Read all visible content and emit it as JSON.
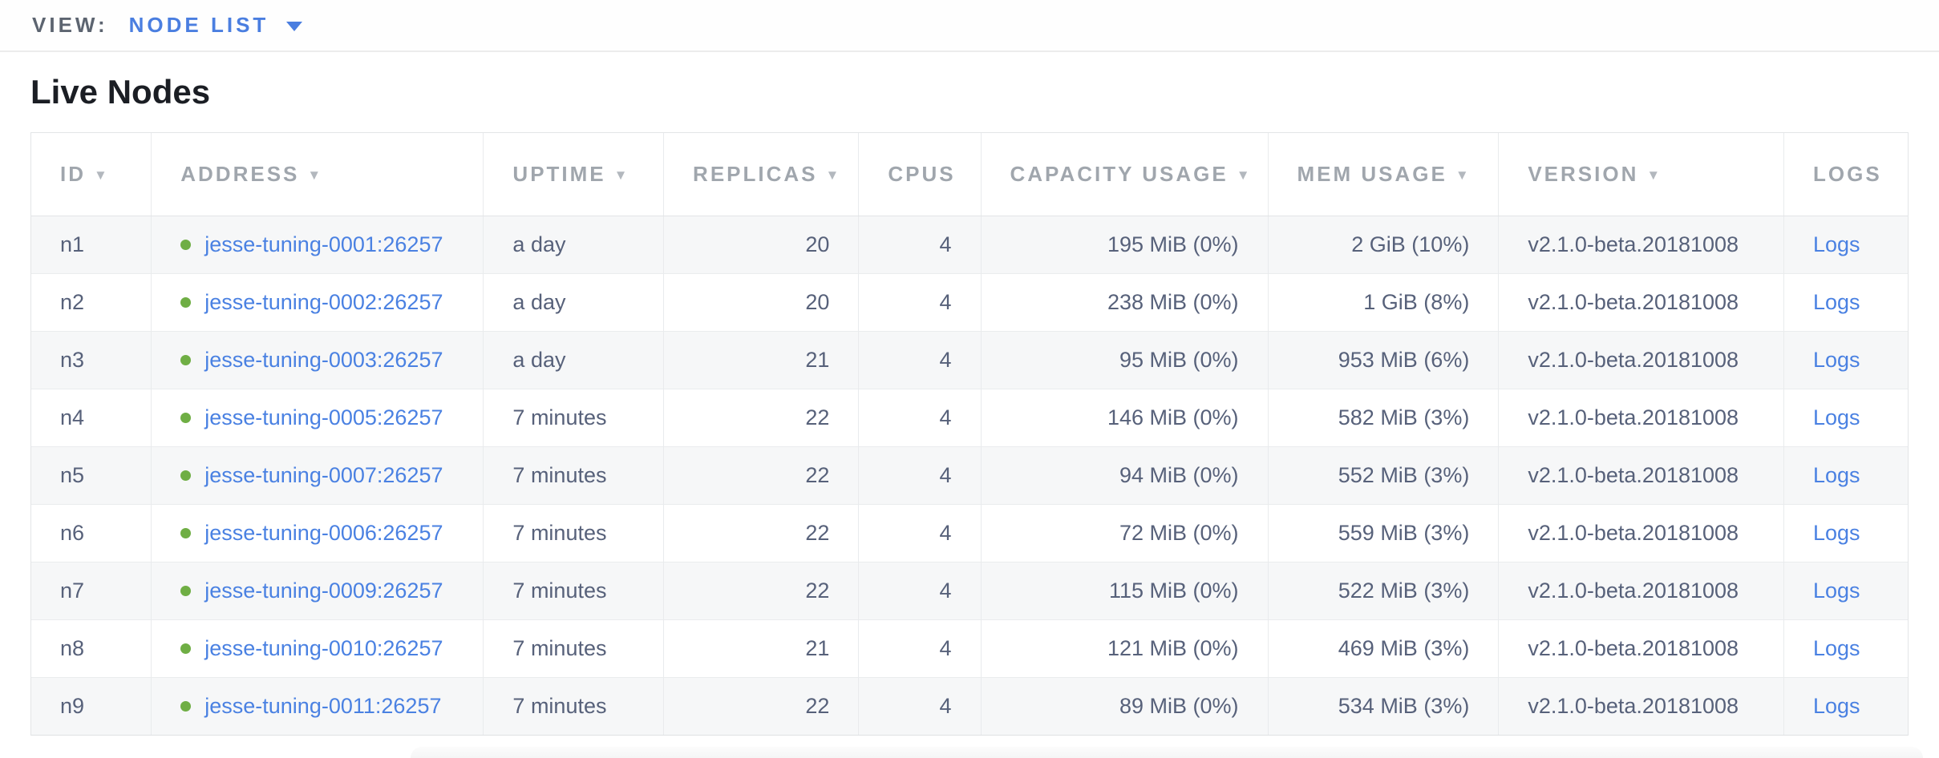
{
  "view_bar": {
    "label": "VIEW:",
    "selected": "NODE LIST"
  },
  "page": {
    "title": "Live Nodes"
  },
  "colors": {
    "accent_blue": "#4a81e2",
    "status_green": "#6fae44",
    "header_gray": "#a0a6ad",
    "body_text": "#57617a",
    "stripe": "#f6f7f8"
  },
  "table": {
    "columns": [
      {
        "key": "id",
        "label": "ID",
        "sortable": true
      },
      {
        "key": "address",
        "label": "ADDRESS",
        "sortable": true
      },
      {
        "key": "uptime",
        "label": "UPTIME",
        "sortable": true
      },
      {
        "key": "replicas",
        "label": "REPLICAS",
        "sortable": true
      },
      {
        "key": "cpus",
        "label": "CPUS",
        "sortable": false
      },
      {
        "key": "capacity",
        "label": "CAPACITY USAGE",
        "sortable": true
      },
      {
        "key": "mem",
        "label": "MEM USAGE",
        "sortable": true
      },
      {
        "key": "version",
        "label": "VERSION",
        "sortable": true
      },
      {
        "key": "logs",
        "label": "LOGS",
        "sortable": false
      }
    ],
    "rows": [
      {
        "id": "n1",
        "address": "jesse-tuning-0001:26257",
        "uptime": "a day",
        "replicas": "20",
        "cpus": "4",
        "capacity": "195 MiB (0%)",
        "mem": "2 GiB (10%)",
        "version": "v2.1.0-beta.20181008",
        "logs": "Logs"
      },
      {
        "id": "n2",
        "address": "jesse-tuning-0002:26257",
        "uptime": "a day",
        "replicas": "20",
        "cpus": "4",
        "capacity": "238 MiB (0%)",
        "mem": "1 GiB (8%)",
        "version": "v2.1.0-beta.20181008",
        "logs": "Logs"
      },
      {
        "id": "n3",
        "address": "jesse-tuning-0003:26257",
        "uptime": "a day",
        "replicas": "21",
        "cpus": "4",
        "capacity": "95 MiB (0%)",
        "mem": "953 MiB (6%)",
        "version": "v2.1.0-beta.20181008",
        "logs": "Logs"
      },
      {
        "id": "n4",
        "address": "jesse-tuning-0005:26257",
        "uptime": "7 minutes",
        "replicas": "22",
        "cpus": "4",
        "capacity": "146 MiB (0%)",
        "mem": "582 MiB (3%)",
        "version": "v2.1.0-beta.20181008",
        "logs": "Logs"
      },
      {
        "id": "n5",
        "address": "jesse-tuning-0007:26257",
        "uptime": "7 minutes",
        "replicas": "22",
        "cpus": "4",
        "capacity": "94 MiB (0%)",
        "mem": "552 MiB (3%)",
        "version": "v2.1.0-beta.20181008",
        "logs": "Logs"
      },
      {
        "id": "n6",
        "address": "jesse-tuning-0006:26257",
        "uptime": "7 minutes",
        "replicas": "22",
        "cpus": "4",
        "capacity": "72 MiB (0%)",
        "mem": "559 MiB (3%)",
        "version": "v2.1.0-beta.20181008",
        "logs": "Logs"
      },
      {
        "id": "n7",
        "address": "jesse-tuning-0009:26257",
        "uptime": "7 minutes",
        "replicas": "22",
        "cpus": "4",
        "capacity": "115 MiB (0%)",
        "mem": "522 MiB (3%)",
        "version": "v2.1.0-beta.20181008",
        "logs": "Logs"
      },
      {
        "id": "n8",
        "address": "jesse-tuning-0010:26257",
        "uptime": "7 minutes",
        "replicas": "21",
        "cpus": "4",
        "capacity": "121 MiB (0%)",
        "mem": "469 MiB (3%)",
        "version": "v2.1.0-beta.20181008",
        "logs": "Logs"
      },
      {
        "id": "n9",
        "address": "jesse-tuning-0011:26257",
        "uptime": "7 minutes",
        "replicas": "22",
        "cpus": "4",
        "capacity": "89 MiB (0%)",
        "mem": "534 MiB (3%)",
        "version": "v2.1.0-beta.20181008",
        "logs": "Logs"
      }
    ]
  }
}
